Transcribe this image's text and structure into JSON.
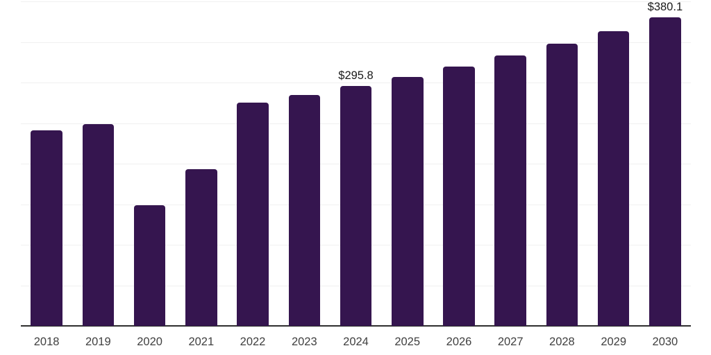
{
  "page": {
    "background": "#ffffff"
  },
  "style": {
    "bar_color": "#35154F",
    "axis_color": "#2e2e2e",
    "gridline_color": "#f0f0f0",
    "tick_label_color": "#404040",
    "data_label_color": "#1a1a1a"
  },
  "chart_data": {
    "type": "bar",
    "title": "",
    "xlabel": "",
    "ylabel": "",
    "categories": [
      "2018",
      "2019",
      "2020",
      "2021",
      "2022",
      "2023",
      "2024",
      "2025",
      "2026",
      "2027",
      "2028",
      "2029",
      "2030"
    ],
    "values": [
      240.9,
      248.4,
      148.4,
      192.9,
      275.1,
      284.4,
      295.8,
      306.6,
      319.4,
      333.2,
      347.7,
      363.2,
      380.1
    ],
    "data_labels": [
      {
        "category": "2024",
        "text": "$295.8"
      },
      {
        "category": "2030",
        "text": "$380.1"
      }
    ],
    "ylim": [
      0,
      400
    ],
    "grid_step": 50,
    "grid": "horizontal",
    "y_tick_labels_visible": false,
    "legend": "none"
  }
}
